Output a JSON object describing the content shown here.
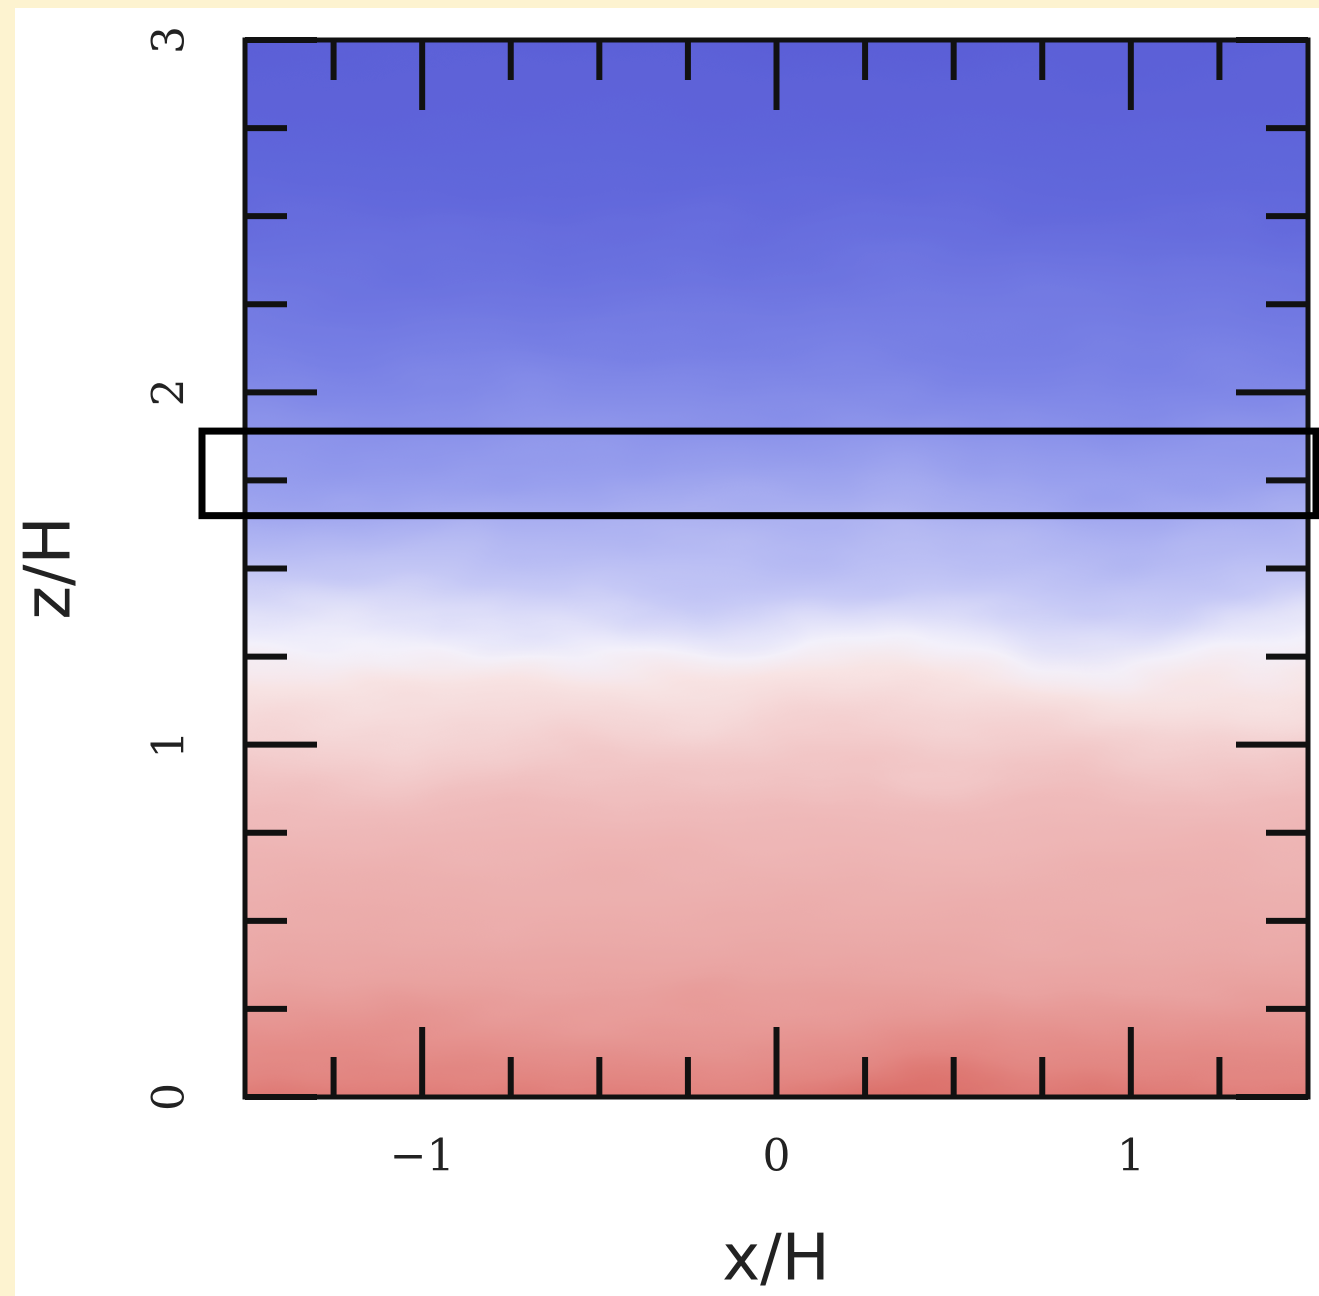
{
  "chart_data": {
    "type": "image",
    "x_label": "x/H",
    "y_label": "z/H",
    "xlim": [
      -1.5,
      1.5
    ],
    "ylim": [
      0,
      3
    ],
    "xticks": [
      {
        "value": -1,
        "label": "−1"
      },
      0,
      1
    ],
    "yticks": [
      0,
      1,
      2,
      3
    ],
    "minor_xticks": [
      -1.25,
      -0.75,
      -0.5,
      -0.25,
      0.25,
      0.5,
      0.75,
      1.25
    ],
    "minor_yticks": [
      0.25,
      0.5,
      0.75,
      1.25,
      1.5,
      1.75,
      2.25,
      2.5,
      2.75
    ],
    "highlight_band": [
      1.65,
      1.89
    ]
  }
}
